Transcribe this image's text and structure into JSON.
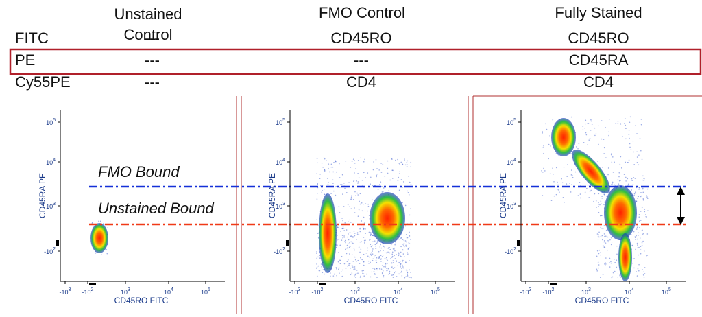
{
  "header": {
    "columns": [
      "Unstained Control",
      "FMO Control",
      "Fully Stained"
    ]
  },
  "table": {
    "rows": [
      {
        "label": "FITC",
        "cells": [
          "---",
          "CD45RO",
          "CD45RO"
        ]
      },
      {
        "label": "PE",
        "cells": [
          "---",
          "---",
          "CD45RA"
        ]
      },
      {
        "label": "Cy55PE",
        "cells": [
          "---",
          "CD4",
          "CD4"
        ]
      }
    ]
  },
  "annotations": {
    "fmo_bound": "FMO Bound",
    "unstained_bound": "Unstained Bound"
  },
  "plots": [
    {
      "y_label": "CD45RA PE",
      "x_label": "CD45RO FITC"
    },
    {
      "y_label": "CD45RA PE",
      "x_label": "CD45RO FITC"
    },
    {
      "y_label": "CD45RA PE",
      "x_label": "CD45RO FITC"
    }
  ],
  "axes": {
    "y_ticks": [
      {
        "base": "10",
        "exp": "5"
      },
      {
        "base": "10",
        "exp": "4"
      },
      {
        "base": "10",
        "exp": "3"
      },
      {
        "base": "-10",
        "exp": "2"
      }
    ],
    "x_ticks": [
      {
        "base": "-10",
        "exp": "3"
      },
      {
        "base": "-10",
        "exp": "2"
      },
      {
        "base": "10",
        "exp": "3"
      },
      {
        "base": "10",
        "exp": "4"
      },
      {
        "base": "10",
        "exp": "5"
      }
    ]
  }
}
